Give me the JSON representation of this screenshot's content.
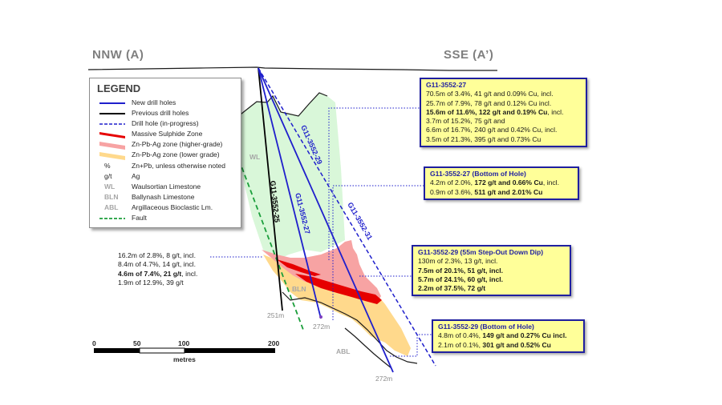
{
  "section": {
    "left_label": "NNW (A)",
    "right_label": "SSE (A’)"
  },
  "legend": {
    "title": "LEGEND",
    "items": [
      {
        "symbol": "solid-blue-line",
        "text": "New drill holes"
      },
      {
        "symbol": "solid-black-line",
        "text": "Previous drill holes"
      },
      {
        "symbol": "dashed-blue-line",
        "text": "Drill hole (in-progress)"
      },
      {
        "symbol": "red-zone",
        "text": "Massive Sulphide Zone"
      },
      {
        "symbol": "pink-zone",
        "text": "Zn-Pb-Ag zone (higher-grade)"
      },
      {
        "symbol": "orange-zone",
        "text": "Zn-Pb-Ag zone (lower grade)"
      },
      {
        "abbr": "%",
        "text": "Zn+Pb, unless otherwise noted"
      },
      {
        "abbr": "g/t",
        "text": "Ag"
      },
      {
        "abbr": "WL",
        "text": "Waulsortian Limestone"
      },
      {
        "abbr": "BLN",
        "text": "Ballynash Limestone"
      },
      {
        "abbr": "ABL",
        "text": "Argillaceous Bioclastic Lm."
      },
      {
        "symbol": "dashed-green-line",
        "text": "Fault"
      }
    ]
  },
  "colors": {
    "new_hole": "#1f1fcc",
    "previous_hole": "#000000",
    "massive_sulphide": "#e60000",
    "higher_grade": "#f7a3a3",
    "lower_grade": "#ffd98c",
    "fault": "#1a9e3a",
    "wl_fill": "#d9f7d9",
    "callout_fill": "#ffff99",
    "callout_border": "#1f1fa0"
  },
  "units": {
    "wl": "WL",
    "bln": "BLN",
    "abl": "ABL"
  },
  "holes": {
    "h25": "G11-3552-25",
    "h27": "G11-3552-27",
    "h29": "G11-3552-29",
    "h31": "G11-3552-31"
  },
  "depths": {
    "d251": "251m",
    "d272a": "272m",
    "d272b": "272m"
  },
  "intercept_25": {
    "lines": [
      {
        "text": "16.2m of 2.8%, 8 g/t, incl."
      },
      {
        "text": "8.4m of 4.7%, 14 g/t, incl."
      },
      {
        "text": "4.6m of 7.4%, 21 g/t",
        "bold_part": "4.6m of 7.4%, 21 g/t",
        "rest": ", incl."
      },
      {
        "text": "1.9m of 12.9%, 39 g/t"
      }
    ]
  },
  "callouts": {
    "c27": {
      "header": "G11-3552-27",
      "l1": "70.5m of 3.4%, 41 g/t and 0.09% Cu, incl.",
      "l2": "25.7m of 7.9%, 78 g/t and 0.12% Cu incl.",
      "l3": "15.6m of 11.6%, 122 g/t and 0.19% Cu",
      "l3_rest": ", incl.",
      "l4": "3.7m of 15.2%, 75 g/t and",
      "l5": "6.6m of 16.7%, 240 g/t and 0.42% Cu, incl.",
      "l6": "3.5m of 21.3%, 395 g/t and 0.73% Cu"
    },
    "c27b": {
      "header": "G11-3552-27 (Bottom of Hole)",
      "l1a": "4.2m of 2.0%, ",
      "l1b": "172 g/t and 0.66% Cu",
      "l1c": ", incl.",
      "l2a": "0.9m of 3.6%, ",
      "l2b": "511 g/t and 2.01% Cu"
    },
    "c29": {
      "header": "G11-3552-29 (55m Step-Out Down Dip)",
      "l1": "130m of 2.3%, 13 g/t, incl.",
      "l2": "7.5m of 20.1%, 51 g/t, incl.",
      "l3": "5.7m of 24.1%, 60 g/t, incl.",
      "l4": "2.2m of 37.5%, 72 g/t"
    },
    "c29b": {
      "header": "G11-3552-29 (Bottom of Hole)",
      "l1a": "4.8m of 0.4%, ",
      "l1b": "149 g/t and 0.27% Cu incl.",
      "l2a": "2.1m of 0.1%, ",
      "l2b": "301 g/t and 0.52% Cu"
    }
  },
  "scale_bar": {
    "ticks": [
      "0",
      "50",
      "100",
      "200"
    ],
    "unit": "metres"
  }
}
